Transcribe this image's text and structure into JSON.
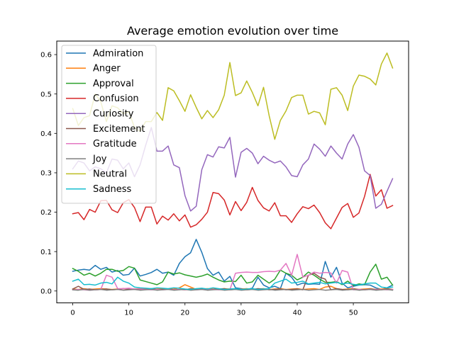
{
  "chart_data": {
    "type": "line",
    "title": "Average emotion evolution over time",
    "xlabel": "",
    "ylabel": "",
    "xlim": [
      -2.85,
      59.85
    ],
    "ylim": [
      -0.0302,
      0.6343
    ],
    "xticks": [
      0,
      10,
      20,
      30,
      40,
      50
    ],
    "yticks": [
      0.0,
      0.1,
      0.2,
      0.3,
      0.4,
      0.5,
      0.6
    ],
    "ytick_labels": [
      "0.0",
      "0.1",
      "0.2",
      "0.3",
      "0.4",
      "0.5",
      "0.6"
    ],
    "grid": false,
    "legend_position": "upper-left",
    "x": [
      0,
      1,
      2,
      3,
      4,
      5,
      6,
      7,
      8,
      9,
      10,
      11,
      12,
      13,
      14,
      15,
      16,
      17,
      18,
      19,
      20,
      21,
      22,
      23,
      24,
      25,
      26,
      27,
      28,
      29,
      30,
      31,
      32,
      33,
      34,
      35,
      36,
      37,
      38,
      39,
      40,
      41,
      42,
      43,
      44,
      45,
      46,
      47,
      48,
      49,
      50,
      51,
      52,
      53,
      54,
      55,
      56,
      57
    ],
    "series": [
      {
        "name": "Admiration",
        "color": "#1f77b4",
        "values": [
          0.05,
          0.053,
          0.055,
          0.053,
          0.065,
          0.055,
          0.06,
          0.048,
          0.052,
          0.04,
          0.042,
          0.058,
          0.038,
          0.042,
          0.047,
          0.055,
          0.045,
          0.048,
          0.04,
          0.07,
          0.087,
          0.097,
          0.131,
          0.098,
          0.057,
          0.04,
          0.048,
          0.025,
          0.037,
          0.008,
          0.006,
          0.004,
          0.007,
          0.035,
          0.015,
          0.008,
          0.012,
          0.006,
          0.045,
          0.035,
          0.015,
          0.02,
          0.017,
          0.018,
          0.017,
          0.075,
          0.035,
          0.06,
          0.02,
          0.008,
          0.012,
          0.015,
          0.016,
          0.015,
          0.008,
          0.004,
          0.008,
          0.015
        ]
      },
      {
        "name": "Anger",
        "color": "#ff7f0e",
        "values": [
          0.005,
          0.004,
          0.006,
          0.004,
          0.005,
          0.006,
          0.005,
          0.004,
          0.005,
          0.006,
          0.004,
          0.005,
          0.006,
          0.005,
          0.004,
          0.005,
          0.006,
          0.004,
          0.005,
          0.008,
          0.016,
          0.01,
          0.004,
          0.005,
          0.006,
          0.005,
          0.004,
          0.006,
          0.005,
          0.004,
          0.005,
          0.006,
          0.004,
          0.005,
          0.006,
          0.004,
          0.005,
          0.006,
          0.004,
          0.005,
          0.006,
          0.004,
          0.005,
          0.006,
          0.004,
          0.01,
          0.012,
          0.006,
          0.004,
          0.005,
          0.006,
          0.004,
          0.005,
          0.006,
          0.004,
          0.005,
          0.006,
          0.004
        ]
      },
      {
        "name": "Approval",
        "color": "#2ca02c",
        "values": [
          0.057,
          0.05,
          0.04,
          0.045,
          0.038,
          0.045,
          0.055,
          0.055,
          0.05,
          0.052,
          0.062,
          0.058,
          0.028,
          0.024,
          0.02,
          0.016,
          0.023,
          0.048,
          0.043,
          0.046,
          0.041,
          0.038,
          0.035,
          0.038,
          0.043,
          0.035,
          0.028,
          0.023,
          0.025,
          0.024,
          0.04,
          0.02,
          0.023,
          0.04,
          0.03,
          0.02,
          0.03,
          0.053,
          0.045,
          0.04,
          0.028,
          0.035,
          0.048,
          0.04,
          0.03,
          0.022,
          0.022,
          0.024,
          0.016,
          0.025,
          0.014,
          0.018,
          0.016,
          0.048,
          0.068,
          0.03,
          0.035,
          0.015
        ]
      },
      {
        "name": "Confusion",
        "color": "#d62728",
        "values": [
          0.196,
          0.199,
          0.181,
          0.207,
          0.2,
          0.229,
          0.23,
          0.206,
          0.199,
          0.224,
          0.232,
          0.212,
          0.176,
          0.213,
          0.213,
          0.17,
          0.19,
          0.18,
          0.196,
          0.178,
          0.193,
          0.162,
          0.168,
          0.182,
          0.2,
          0.25,
          0.247,
          0.231,
          0.193,
          0.227,
          0.204,
          0.225,
          0.263,
          0.23,
          0.211,
          0.203,
          0.224,
          0.191,
          0.191,
          0.174,
          0.196,
          0.214,
          0.209,
          0.218,
          0.199,
          0.173,
          0.158,
          0.185,
          0.212,
          0.222,
          0.187,
          0.198,
          0.24,
          0.296,
          0.241,
          0.257,
          0.21,
          0.217
        ]
      },
      {
        "name": "Curiosity",
        "color": "#9467bd",
        "values": [
          0.31,
          0.33,
          0.325,
          0.305,
          0.315,
          0.31,
          0.3,
          0.335,
          0.332,
          0.31,
          0.325,
          0.29,
          0.32,
          0.37,
          0.415,
          0.355,
          0.355,
          0.368,
          0.32,
          0.313,
          0.242,
          0.203,
          0.215,
          0.308,
          0.346,
          0.34,
          0.366,
          0.363,
          0.39,
          0.289,
          0.352,
          0.362,
          0.35,
          0.323,
          0.342,
          0.332,
          0.325,
          0.33,
          0.315,
          0.293,
          0.29,
          0.32,
          0.335,
          0.373,
          0.36,
          0.342,
          0.368,
          0.35,
          0.335,
          0.373,
          0.397,
          0.365,
          0.305,
          0.293,
          0.21,
          0.22,
          0.253,
          0.285
        ]
      },
      {
        "name": "Excitement",
        "color": "#8c564b",
        "values": [
          0.005,
          0.012,
          0.004,
          0.005,
          0.003,
          0.004,
          0.005,
          0.003,
          0.004,
          0.006,
          0.005,
          0.004,
          0.003,
          0.004,
          0.006,
          0.003,
          0.004,
          0.005,
          0.003,
          0.004,
          0.003,
          0.006,
          0.004,
          0.005,
          0.003,
          0.004,
          0.005,
          0.006,
          0.003,
          0.004,
          0.005,
          0.003,
          0.004,
          0.006,
          0.005,
          0.003,
          0.004,
          0.005,
          0.003,
          0.004,
          0.005,
          0.003,
          0.04,
          0.045,
          0.035,
          0.03,
          0.003,
          0.006,
          0.004,
          0.003,
          0.005,
          0.004,
          0.003,
          0.005,
          0.004,
          0.003,
          0.005,
          0.004
        ]
      },
      {
        "name": "Gratitude",
        "color": "#e377c2",
        "values": [
          0.003,
          0.004,
          0.003,
          0.002,
          0.003,
          0.004,
          0.04,
          0.035,
          0.006,
          0.006,
          0.007,
          0.005,
          0.005,
          0.004,
          0.003,
          0.004,
          0.003,
          0.004,
          0.003,
          0.004,
          0.003,
          0.004,
          0.003,
          0.004,
          0.003,
          0.004,
          0.003,
          0.004,
          0.003,
          0.045,
          0.047,
          0.048,
          0.047,
          0.047,
          0.049,
          0.05,
          0.049,
          0.053,
          0.07,
          0.04,
          0.093,
          0.035,
          0.04,
          0.048,
          0.045,
          0.047,
          0.046,
          0.02,
          0.052,
          0.048,
          0.003,
          0.004,
          0.003,
          0.004,
          0.003,
          0.004,
          0.003,
          0.004
        ]
      },
      {
        "name": "Joy",
        "color": "#7f7f7f",
        "values": [
          0.003,
          0.002,
          0.004,
          0.002,
          0.003,
          0.004,
          0.002,
          0.003,
          0.004,
          0.002,
          0.003,
          0.004,
          0.002,
          0.003,
          0.004,
          0.002,
          0.003,
          0.004,
          0.002,
          0.003,
          0.004,
          0.002,
          0.003,
          0.004,
          0.002,
          0.003,
          0.004,
          0.002,
          0.003,
          0.004,
          0.002,
          0.003,
          0.004,
          0.002,
          0.003,
          0.004,
          0.002,
          0.003,
          0.004,
          0.002,
          0.003,
          0.004,
          0.002,
          0.003,
          0.004,
          0.002,
          0.003,
          0.004,
          0.002,
          0.003,
          0.004,
          0.002,
          0.003,
          0.004,
          0.002,
          0.003,
          0.004,
          0.002
        ]
      },
      {
        "name": "Neutral",
        "color": "#bcbd22",
        "values": [
          0.463,
          0.42,
          0.44,
          0.445,
          0.5,
          0.48,
          0.43,
          0.47,
          0.465,
          0.45,
          0.455,
          0.415,
          0.405,
          0.43,
          0.43,
          0.453,
          0.433,
          0.516,
          0.508,
          0.483,
          0.456,
          0.498,
          0.466,
          0.437,
          0.458,
          0.44,
          0.46,
          0.497,
          0.58,
          0.496,
          0.503,
          0.533,
          0.504,
          0.47,
          0.517,
          0.445,
          0.385,
          0.433,
          0.457,
          0.491,
          0.497,
          0.497,
          0.449,
          0.456,
          0.452,
          0.422,
          0.512,
          0.516,
          0.497,
          0.458,
          0.52,
          0.548,
          0.545,
          0.538,
          0.523,
          0.576,
          0.604,
          0.566
        ]
      },
      {
        "name": "Sadness",
        "color": "#17becf",
        "values": [
          0.025,
          0.03,
          0.016,
          0.017,
          0.015,
          0.02,
          0.022,
          0.018,
          0.035,
          0.025,
          0.02,
          0.01,
          0.008,
          0.007,
          0.006,
          0.008,
          0.007,
          0.006,
          0.008,
          0.007,
          0.005,
          0.004,
          0.006,
          0.007,
          0.005,
          0.008,
          0.006,
          0.004,
          0.005,
          0.006,
          0.004,
          0.005,
          0.006,
          0.004,
          0.005,
          0.006,
          0.02,
          0.025,
          0.03,
          0.02,
          0.022,
          0.025,
          0.018,
          0.02,
          0.022,
          0.018,
          0.02,
          0.022,
          0.018,
          0.02,
          0.017,
          0.015,
          0.018,
          0.02,
          0.02,
          0.01,
          0.008,
          0.01
        ]
      }
    ]
  }
}
